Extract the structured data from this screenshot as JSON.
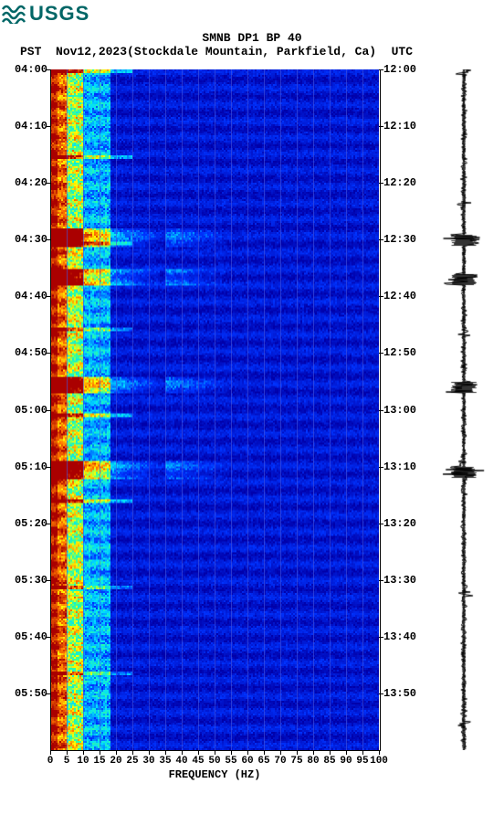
{
  "logo_text": "USGS",
  "title": "SMNB DP1 BP 40",
  "left_tz": "PST",
  "date": "Nov12,2023",
  "station": "(Stockdale Mountain, Parkfield, Ca)",
  "right_tz": "UTC",
  "x_title": "FREQUENCY (HZ)",
  "y_left_labels": [
    "04:00",
    "04:10",
    "04:20",
    "04:30",
    "04:40",
    "04:50",
    "05:00",
    "05:10",
    "05:20",
    "05:30",
    "05:40",
    "05:50"
  ],
  "y_right_labels": [
    "12:00",
    "12:10",
    "12:20",
    "12:30",
    "12:40",
    "12:50",
    "13:00",
    "13:10",
    "13:20",
    "13:30",
    "13:40",
    "13:50"
  ],
  "x_ticks": [
    0,
    5,
    10,
    15,
    20,
    25,
    30,
    35,
    40,
    45,
    50,
    55,
    60,
    65,
    70,
    75,
    80,
    85,
    90,
    95,
    100
  ],
  "spectrogram": {
    "xlim": [
      0,
      100
    ],
    "ylim_rows": 120,
    "colormap_stops": [
      [
        0.0,
        "#0000aa"
      ],
      [
        0.25,
        "#0033ff"
      ],
      [
        0.45,
        "#00ddff"
      ],
      [
        0.6,
        "#33ff99"
      ],
      [
        0.72,
        "#ffff00"
      ],
      [
        0.85,
        "#ff7700"
      ],
      [
        1.0,
        "#aa0000"
      ]
    ],
    "grid_color": "#5566ee",
    "bg_color": "#0011cc",
    "events_rows": [
      29,
      30,
      36,
      37,
      55,
      56,
      70,
      71
    ],
    "waveform_color": "#000000"
  },
  "fonts": {
    "title_pt": 13,
    "axis_pt": 12,
    "tick_pt": 11,
    "family": "Courier New"
  },
  "colors": {
    "logo": "#006666",
    "text": "#000000",
    "page_bg": "#ffffff"
  }
}
